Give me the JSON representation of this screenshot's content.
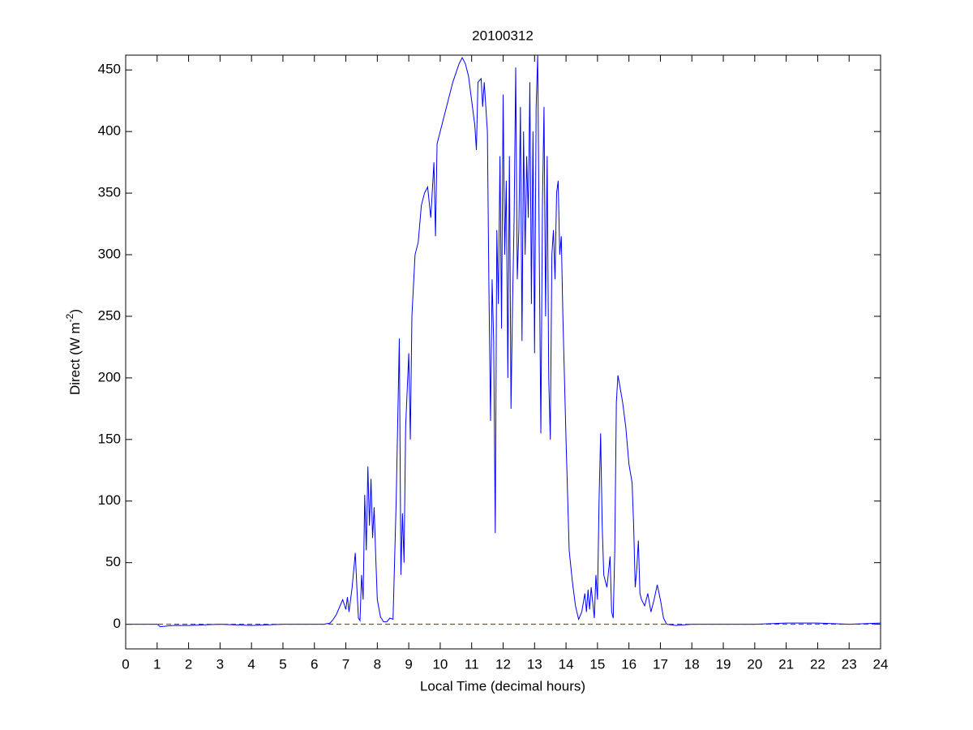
{
  "chart_data": {
    "type": "line",
    "title": "20100312",
    "x_label": "Local Time (decimal hours)",
    "y_label": {
      "text": "Direct (W m",
      "superscript": "-2",
      "suffix": ")"
    },
    "xlim": [
      0,
      24
    ],
    "xticks": [
      0,
      1,
      2,
      3,
      4,
      5,
      6,
      7,
      8,
      9,
      10,
      11,
      12,
      13,
      14,
      15,
      16,
      17,
      18,
      19,
      20,
      21,
      22,
      23,
      24
    ],
    "ylim": [
      -20,
      462
    ],
    "yticks": [
      0,
      50,
      100,
      150,
      200,
      250,
      300,
      350,
      400,
      450
    ],
    "series": [
      {
        "color": "#0000ff",
        "dash": false,
        "x": [
          0,
          1,
          1.1,
          1.5,
          2,
          3,
          4,
          5,
          6,
          6.3,
          6.5,
          6.6,
          6.7,
          6.8,
          6.9,
          7.0,
          7.05,
          7.1,
          7.2,
          7.3,
          7.35,
          7.4,
          7.45,
          7.5,
          7.55,
          7.6,
          7.65,
          7.7,
          7.75,
          7.8,
          7.85,
          7.9,
          7.95,
          8.0,
          8.1,
          8.2,
          8.3,
          8.4,
          8.5,
          8.6,
          8.7,
          8.75,
          8.8,
          8.85,
          8.9,
          9.0,
          9.05,
          9.1,
          9.2,
          9.3,
          9.4,
          9.5,
          9.6,
          9.7,
          9.8,
          9.85,
          9.9,
          10.0,
          10.2,
          10.4,
          10.6,
          10.7,
          10.8,
          10.9,
          11.0,
          11.1,
          11.15,
          11.2,
          11.3,
          11.35,
          11.4,
          11.5,
          11.55,
          11.6,
          11.65,
          11.7,
          11.75,
          11.8,
          11.85,
          11.9,
          11.95,
          12.0,
          12.05,
          12.1,
          12.15,
          12.2,
          12.25,
          12.3,
          12.35,
          12.4,
          12.45,
          12.5,
          12.55,
          12.6,
          12.65,
          12.7,
          12.75,
          12.8,
          12.85,
          12.9,
          12.95,
          13.0,
          13.05,
          13.1,
          13.15,
          13.2,
          13.25,
          13.3,
          13.35,
          13.4,
          13.45,
          13.5,
          13.55,
          13.6,
          13.65,
          13.7,
          13.75,
          13.8,
          13.85,
          13.9,
          14.0,
          14.1,
          14.2,
          14.3,
          14.4,
          14.5,
          14.6,
          14.65,
          14.7,
          14.75,
          14.8,
          14.9,
          14.95,
          15.0,
          15.05,
          15.1,
          15.15,
          15.2,
          15.3,
          15.4,
          15.45,
          15.5,
          15.55,
          15.6,
          15.65,
          15.7,
          15.8,
          15.9,
          16.0,
          16.1,
          16.15,
          16.2,
          16.25,
          16.3,
          16.35,
          16.4,
          16.5,
          16.6,
          16.7,
          16.8,
          16.9,
          17.0,
          17.1,
          17.2,
          17.5,
          18,
          19,
          20,
          21,
          22,
          23,
          24
        ],
        "values": [
          0,
          0,
          -2,
          -1,
          -1,
          0,
          -1,
          0,
          0,
          0,
          1,
          4,
          8,
          14,
          20,
          12,
          22,
          10,
          30,
          58,
          30,
          5,
          3,
          40,
          20,
          105,
          60,
          128,
          80,
          118,
          70,
          95,
          55,
          20,
          6,
          2,
          2,
          5,
          4,
          100,
          232,
          40,
          90,
          50,
          160,
          220,
          150,
          250,
          300,
          310,
          340,
          350,
          355,
          330,
          375,
          315,
          390,
          400,
          420,
          440,
          455,
          460,
          455,
          445,
          425,
          405,
          385,
          440,
          443,
          420,
          440,
          400,
          270,
          165,
          280,
          230,
          74,
          320,
          260,
          380,
          240,
          430,
          300,
          360,
          200,
          380,
          175,
          260,
          330,
          452,
          280,
          320,
          420,
          230,
          400,
          300,
          380,
          330,
          440,
          260,
          400,
          220,
          420,
          462,
          300,
          155,
          340,
          420,
          250,
          380,
          200,
          150,
          300,
          320,
          280,
          350,
          360,
          300,
          315,
          250,
          150,
          60,
          35,
          15,
          4,
          10,
          25,
          10,
          28,
          12,
          30,
          5,
          40,
          20,
          100,
          155,
          80,
          40,
          30,
          55,
          10,
          5,
          60,
          180,
          202,
          195,
          180,
          160,
          130,
          115,
          80,
          30,
          45,
          68,
          25,
          20,
          15,
          25,
          10,
          20,
          32,
          20,
          5,
          0,
          -1,
          0,
          0,
          0,
          1,
          1,
          0,
          1
        ]
      },
      {
        "color": "#c00000",
        "dash": true,
        "x": [
          0,
          24
        ],
        "values": [
          0,
          0
        ]
      }
    ]
  }
}
